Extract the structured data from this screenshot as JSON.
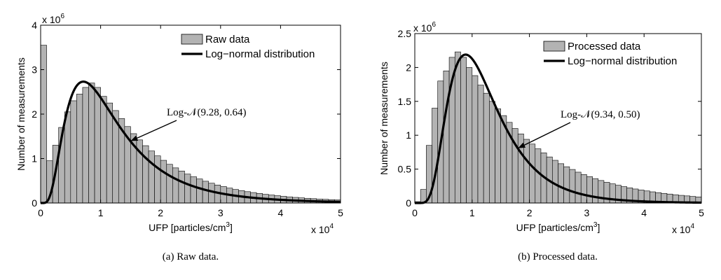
{
  "chart_data": [
    {
      "type": "bar",
      "panel": "a",
      "xlabel_base": "UFP [particles/cm",
      "xlabel_sup": "3",
      "xlabel_close": "]",
      "ylabel": "Number of measurements",
      "y_multiplier_base": "x 10",
      "y_multiplier_exp": "6",
      "x_multiplier_base": "x 10",
      "x_multiplier_exp": "4",
      "xlim": [
        0,
        50000
      ],
      "ylim": [
        0,
        4000000
      ],
      "x_ticks": [
        0,
        10000,
        20000,
        30000,
        40000,
        50000
      ],
      "x_tick_labels": [
        "0",
        "1",
        "2",
        "3",
        "4",
        "5"
      ],
      "y_ticks": [
        0,
        1000000,
        2000000,
        3000000,
        4000000
      ],
      "y_tick_labels": [
        "0",
        "1",
        "2",
        "3",
        "4"
      ],
      "bin_width": 1000,
      "bin_starts": [
        0,
        1000,
        2000,
        3000,
        4000,
        5000,
        6000,
        7000,
        8000,
        9000,
        10000,
        11000,
        12000,
        13000,
        14000,
        15000,
        16000,
        17000,
        18000,
        19000,
        20000,
        21000,
        22000,
        23000,
        24000,
        25000,
        26000,
        27000,
        28000,
        29000,
        30000,
        31000,
        32000,
        33000,
        34000,
        35000,
        36000,
        37000,
        38000,
        39000,
        40000,
        41000,
        42000,
        43000,
        44000,
        45000,
        46000,
        47000,
        48000,
        49000
      ],
      "series": [
        {
          "name": "Raw data",
          "kind": "histogram",
          "color": "#b3b3b3",
          "values": [
            3550000,
            950000,
            1300000,
            1700000,
            2050000,
            2300000,
            2450000,
            2600000,
            2700000,
            2600000,
            2400000,
            2250000,
            2080000,
            1900000,
            1720000,
            1560000,
            1420000,
            1290000,
            1170000,
            1060000,
            960000,
            870000,
            790000,
            720000,
            650000,
            590000,
            540000,
            490000,
            445000,
            405000,
            370000,
            335000,
            305000,
            280000,
            255000,
            235000,
            215000,
            195000,
            180000,
            165000,
            150000,
            138000,
            126000,
            116000,
            106000,
            98000,
            90000,
            83000,
            76000,
            70000
          ]
        },
        {
          "name": "Log−normal distribution",
          "kind": "curve",
          "color": "#000000",
          "mu": 9.28,
          "sigma": 0.64,
          "peak": 2730000
        }
      ],
      "legend": {
        "position": "top-right",
        "entries": [
          "Raw data",
          "Log−normal distribution"
        ]
      },
      "annotation": {
        "text": "Log-𝒩(9.28, 0.64)",
        "target_x": 15000
      },
      "caption": "(a)  Raw data."
    },
    {
      "type": "bar",
      "panel": "b",
      "xlabel_base": "UFP [particles/cm",
      "xlabel_sup": "3",
      "xlabel_close": "]",
      "ylabel": "Number of measurements",
      "y_multiplier_base": "x 10",
      "y_multiplier_exp": "6",
      "x_multiplier_base": "x 10",
      "x_multiplier_exp": "4",
      "xlim": [
        0,
        50000
      ],
      "ylim": [
        0,
        2500000
      ],
      "x_ticks": [
        0,
        10000,
        20000,
        30000,
        40000,
        50000
      ],
      "x_tick_labels": [
        "0",
        "1",
        "2",
        "3",
        "4",
        "5"
      ],
      "y_ticks": [
        0,
        500000,
        1000000,
        1500000,
        2000000,
        2500000
      ],
      "y_tick_labels": [
        "0",
        "0.5",
        "1",
        "1.5",
        "2",
        "2.5"
      ],
      "bin_width": 1000,
      "bin_starts": [
        0,
        1000,
        2000,
        3000,
        4000,
        5000,
        6000,
        7000,
        8000,
        9000,
        10000,
        11000,
        12000,
        13000,
        14000,
        15000,
        16000,
        17000,
        18000,
        19000,
        20000,
        21000,
        22000,
        23000,
        24000,
        25000,
        26000,
        27000,
        28000,
        29000,
        30000,
        31000,
        32000,
        33000,
        34000,
        35000,
        36000,
        37000,
        38000,
        39000,
        40000,
        41000,
        42000,
        43000,
        44000,
        45000,
        46000,
        47000,
        48000,
        49000
      ],
      "series": [
        {
          "name": "Processed data",
          "kind": "histogram",
          "color": "#b3b3b3",
          "values": [
            20000,
            200000,
            850000,
            1400000,
            1800000,
            1950000,
            2150000,
            2230000,
            2150000,
            2000000,
            1880000,
            1740000,
            1620000,
            1500000,
            1390000,
            1290000,
            1190000,
            1100000,
            1020000,
            940000,
            870000,
            800000,
            740000,
            680000,
            630000,
            580000,
            535000,
            495000,
            455000,
            420000,
            390000,
            360000,
            332000,
            306000,
            283000,
            262000,
            242000,
            224000,
            207000,
            192000,
            178000,
            165000,
            153000,
            142000,
            132000,
            122000,
            113000,
            105000,
            97000,
            90000
          ]
        },
        {
          "name": "Log−normal distribution",
          "kind": "curve",
          "color": "#000000",
          "mu": 9.34,
          "sigma": 0.5,
          "peak": 2190000
        }
      ],
      "legend": {
        "position": "top-right",
        "entries": [
          "Processed data",
          "Log−normal distribution"
        ]
      },
      "annotation": {
        "text": "Log-𝒩(9.34, 0.50)",
        "target_x": 18000
      },
      "caption": "(b)  Processed data."
    }
  ]
}
